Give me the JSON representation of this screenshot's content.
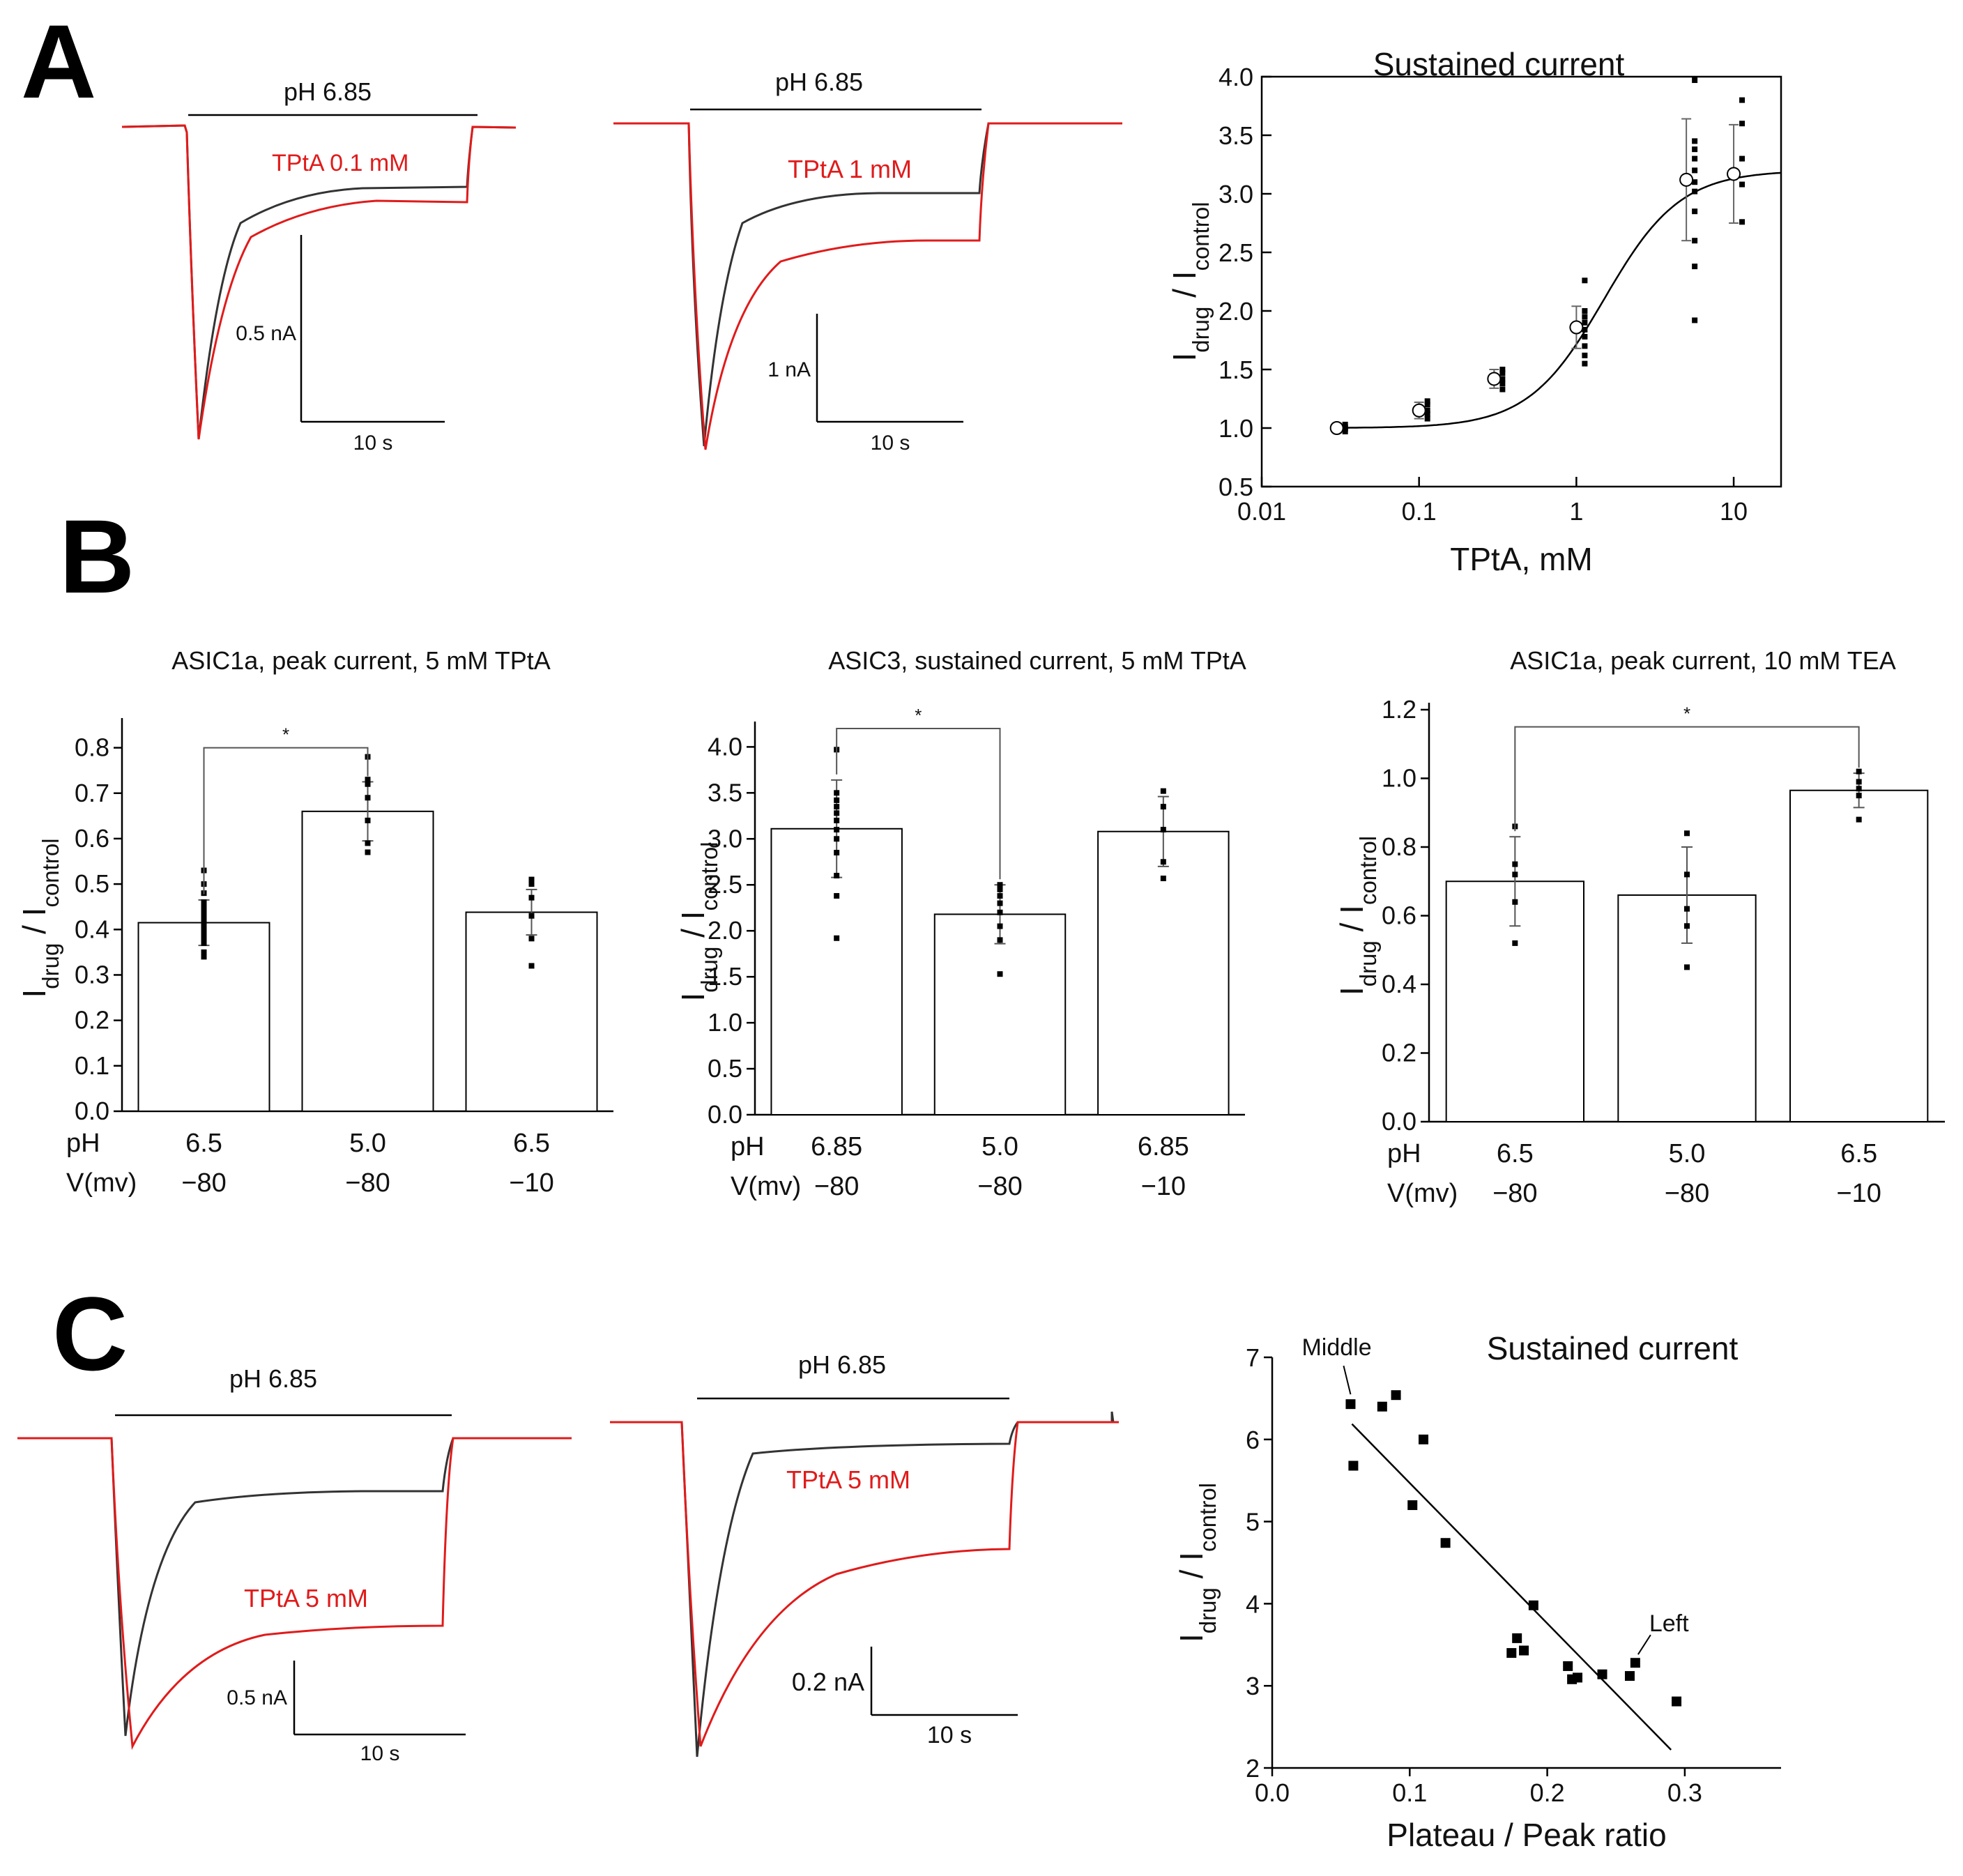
{
  "panels": {
    "a": "A",
    "b": "B",
    "c": "C"
  },
  "colors": {
    "control": "#333333",
    "drug": "#e01b1b",
    "axis": "#000000"
  },
  "traces": {
    "a1": {
      "bar_label": "pH 6.85",
      "drug_label": "TPtA 0.1 mM",
      "scale_y": "0.5 nA",
      "scale_x": "10 s"
    },
    "a2": {
      "bar_label": "pH 6.85",
      "drug_label": "TPtA 1 mM",
      "scale_y": "1 nA",
      "scale_x": "10 s"
    },
    "c1": {
      "bar_label": "pH 6.85",
      "drug_label": "TPtA 5 mM",
      "scale_y": "0.5 nA",
      "scale_x": "10 s"
    },
    "c2": {
      "bar_label": "pH 6.85",
      "drug_label": "TPtA 5 mM",
      "scale_y": "0.2 nA",
      "scale_x": "10 s"
    }
  },
  "ylabel_main": "I",
  "ylabel_sub1": "drug",
  "ylabel_sep": " / I",
  "ylabel_sub2": "control",
  "chart_data": [
    {
      "id": "A3",
      "type": "scatter",
      "title": "Sustained current",
      "xlabel": "TPtA, mM",
      "xscale": "log",
      "xlim": [
        0.01,
        20
      ],
      "ylim": [
        0.5,
        4.0
      ],
      "xticks": [
        0.01,
        0.1,
        1,
        10
      ],
      "xtick_labels": [
        "0.01",
        "0.1",
        "1",
        "10"
      ],
      "yticks": [
        0.5,
        1.0,
        1.5,
        2.0,
        2.5,
        3.0,
        3.5,
        4.0
      ],
      "ytick_labels": [
        "0.5",
        "1.0",
        "1.5",
        "2.0",
        "2.5",
        "3.0",
        "3.5",
        "4.0"
      ],
      "means": [
        {
          "x": 0.03,
          "y": 1.0,
          "err": 0.04
        },
        {
          "x": 0.1,
          "y": 1.15,
          "err": 0.07
        },
        {
          "x": 0.3,
          "y": 1.42,
          "err": 0.08
        },
        {
          "x": 1,
          "y": 1.86,
          "err": 0.18
        },
        {
          "x": 5,
          "y": 3.12,
          "err": 0.52
        },
        {
          "x": 10,
          "y": 3.17,
          "err": 0.42
        }
      ],
      "points": [
        {
          "x": 0.03,
          "ys": [
            0.97,
            0.99,
            1.0,
            1.01,
            1.03
          ]
        },
        {
          "x": 0.1,
          "ys": [
            1.08,
            1.12,
            1.15,
            1.2,
            1.23
          ]
        },
        {
          "x": 0.3,
          "ys": [
            1.33,
            1.38,
            1.42,
            1.47,
            1.5
          ]
        },
        {
          "x": 1,
          "ys": [
            1.55,
            1.62,
            1.7,
            1.78,
            1.84,
            1.9,
            1.95,
            2.0,
            2.26
          ]
        },
        {
          "x": 5,
          "ys": [
            1.92,
            2.38,
            2.6,
            2.85,
            3.02,
            3.1,
            3.2,
            3.3,
            3.38,
            3.45,
            3.97
          ]
        },
        {
          "x": 10,
          "ys": [
            2.76,
            3.08,
            3.3,
            3.6,
            3.8
          ]
        }
      ],
      "fit": {
        "A1": 1.0,
        "A2": 3.2,
        "x0": 1.5,
        "p": 1.8
      }
    },
    {
      "id": "B1",
      "type": "bar",
      "title": "ASIC1a, peak current, 5 mM TPtA",
      "ylim": [
        0,
        0.85
      ],
      "yticks": [
        0.0,
        0.1,
        0.2,
        0.3,
        0.4,
        0.5,
        0.6,
        0.7,
        0.8
      ],
      "ytick_labels": [
        "0.0",
        "0.1",
        "0.2",
        "0.3",
        "0.4",
        "0.5",
        "0.6",
        "0.7",
        "0.8"
      ],
      "row_labels": [
        "pH",
        "V(mv)"
      ],
      "ph": [
        "6.5",
        "5.0",
        "6.5"
      ],
      "voltage": [
        "−80",
        "−80",
        "−10"
      ],
      "values": [
        0.415,
        0.66,
        0.438
      ],
      "errors": [
        0.05,
        0.065,
        0.05
      ],
      "points": [
        [
          0.34,
          0.35,
          0.37,
          0.38,
          0.39,
          0.4,
          0.41,
          0.42,
          0.43,
          0.44,
          0.45,
          0.46,
          0.48,
          0.5,
          0.53
        ],
        [
          0.57,
          0.59,
          0.64,
          0.69,
          0.72,
          0.73,
          0.78
        ],
        [
          0.32,
          0.38,
          0.43,
          0.47,
          0.5,
          0.51
        ]
      ],
      "significance": {
        "from": 0,
        "to": 1,
        "label": "*",
        "y": 0.8
      }
    },
    {
      "id": "B2",
      "type": "bar",
      "title": "ASIC3, sustained current, 5 mM TPtA",
      "ylim": [
        0,
        4.2
      ],
      "yticks": [
        0.0,
        0.5,
        1.0,
        1.5,
        2.0,
        2.5,
        3.0,
        3.5,
        4.0
      ],
      "ytick_labels": [
        "0.0",
        "0.5",
        "1.0",
        "1.5",
        "2.0",
        "2.5",
        "3.0",
        "3.5",
        "4.0"
      ],
      "row_labels": [
        "pH",
        "V(mv)"
      ],
      "ph": [
        "6.85",
        "5.0",
        "6.85"
      ],
      "voltage": [
        "−80",
        "−80",
        "−10"
      ],
      "values": [
        3.11,
        2.18,
        3.08
      ],
      "errors": [
        0.53,
        0.32,
        0.38
      ],
      "points": [
        [
          1.92,
          2.38,
          2.6,
          2.85,
          3.0,
          3.1,
          3.2,
          3.28,
          3.35,
          3.42,
          3.5,
          3.97
        ],
        [
          1.53,
          1.9,
          2.05,
          2.2,
          2.3,
          2.38,
          2.45,
          2.5
        ],
        [
          2.57,
          2.75,
          3.1,
          3.35,
          3.52
        ]
      ],
      "significance": {
        "from": 0,
        "to": 1,
        "label": "*",
        "y": 4.2
      }
    },
    {
      "id": "B3",
      "type": "bar",
      "title": "ASIC1a, peak current, 10 mM TEA",
      "ylim": [
        0,
        1.2
      ],
      "yticks": [
        0.0,
        0.2,
        0.4,
        0.6,
        0.8,
        1.0,
        1.2
      ],
      "ytick_labels": [
        "0.0",
        "0.2",
        "0.4",
        "0.6",
        "0.8",
        "1.0",
        "1.2"
      ],
      "row_labels": [
        "pH",
        "V(mv)"
      ],
      "ph": [
        "6.5",
        "5.0",
        "6.5"
      ],
      "voltage": [
        "−80",
        "−80",
        "−10"
      ],
      "values": [
        0.7,
        0.66,
        0.965
      ],
      "errors": [
        0.13,
        0.14,
        0.05
      ],
      "points": [
        [
          0.52,
          0.64,
          0.72,
          0.75,
          0.86
        ],
        [
          0.45,
          0.57,
          0.62,
          0.72,
          0.84
        ],
        [
          0.88,
          0.95,
          0.97,
          0.99,
          1.02
        ]
      ],
      "significance": {
        "from": 0,
        "to": 2,
        "label": "*",
        "y": 1.15
      }
    },
    {
      "id": "C3",
      "type": "scatter",
      "title": "Sustained current",
      "xlabel": "Plateau / Peak  ratio",
      "xlim": [
        0.0,
        0.37
      ],
      "ylim": [
        2,
        7
      ],
      "xticks": [
        0.0,
        0.1,
        0.2,
        0.3
      ],
      "xtick_labels": [
        "0.0",
        "0.1",
        "0.2",
        "0.3"
      ],
      "yticks": [
        2,
        3,
        4,
        5,
        6,
        7
      ],
      "ytick_labels": [
        "2",
        "3",
        "4",
        "5",
        "6",
        "7"
      ],
      "points": [
        [
          0.057,
          6.43
        ],
        [
          0.059,
          5.68
        ],
        [
          0.08,
          6.4
        ],
        [
          0.09,
          6.54
        ],
        [
          0.102,
          5.2
        ],
        [
          0.11,
          6.0
        ],
        [
          0.126,
          4.74
        ],
        [
          0.19,
          3.98
        ],
        [
          0.174,
          3.4
        ],
        [
          0.178,
          3.58
        ],
        [
          0.183,
          3.43
        ],
        [
          0.215,
          3.24
        ],
        [
          0.218,
          3.08
        ],
        [
          0.222,
          3.1
        ],
        [
          0.24,
          3.14
        ],
        [
          0.26,
          3.12
        ],
        [
          0.264,
          3.28
        ],
        [
          0.294,
          2.81
        ]
      ],
      "fit": {
        "slope": -17.1,
        "intercept": 7.18,
        "x_from": 0.058,
        "x_to": 0.29
      },
      "annotations": [
        {
          "text": "Middle",
          "x": 0.057,
          "y": 6.43
        },
        {
          "text": "Left",
          "x": 0.264,
          "y": 3.28
        }
      ]
    }
  ]
}
